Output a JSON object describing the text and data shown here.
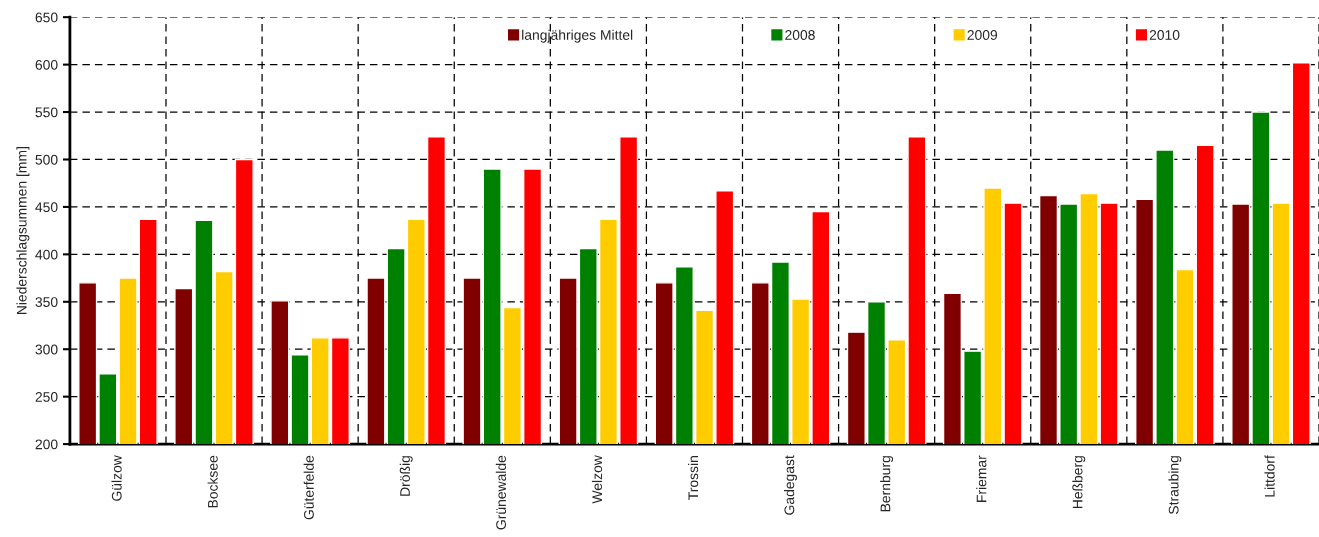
{
  "chart_data": {
    "type": "bar",
    "ylabel": "Niederschlagsummen [mm]",
    "categories": [
      "Gülzow",
      "Bocksee",
      "Güterfelde",
      "Drößig",
      "Grünewalde",
      "Welzow",
      "Trossin",
      "Gadegast",
      "Bernburg",
      "Friemar",
      "Heßberg",
      "Straubing",
      "Littdorf"
    ],
    "series": [
      {
        "name": "langjähriges Mittel",
        "color": "#800000",
        "values": [
          370,
          364,
          351,
          375,
          375,
          375,
          370,
          370,
          318,
          359,
          462,
          458,
          453
        ]
      },
      {
        "name": "2008",
        "color": "#008000",
        "values": [
          274,
          436,
          294,
          406,
          490,
          406,
          387,
          392,
          350,
          298,
          453,
          510,
          550
        ]
      },
      {
        "name": "2009",
        "color": "#ffcc00",
        "values": [
          375,
          382,
          312,
          437,
          344,
          437,
          341,
          353,
          310,
          470,
          464,
          384,
          454
        ]
      },
      {
        "name": "2010",
        "color": "#ff0000",
        "values": [
          437,
          500,
          312,
          524,
          490,
          524,
          467,
          445,
          524,
          454,
          454,
          515,
          602
        ]
      }
    ],
    "ylim": [
      200,
      650
    ],
    "yticks": [
      200,
      250,
      300,
      350,
      400,
      450,
      500,
      550,
      600,
      650
    ],
    "grid": true,
    "legend": "top"
  }
}
